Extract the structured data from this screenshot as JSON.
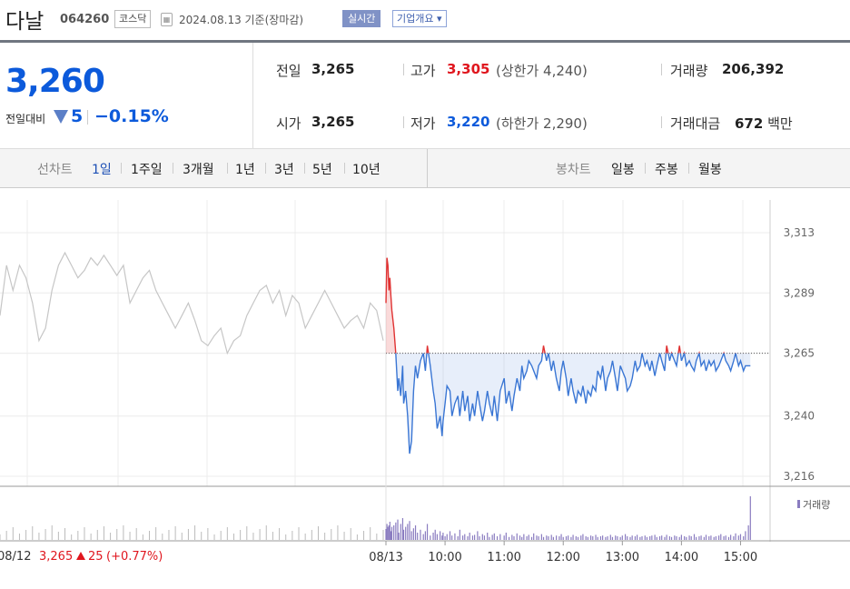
{
  "header": {
    "name": "다날",
    "code": "064260",
    "market": "코스닥",
    "date": "2024.08.13 기준(장마감)",
    "realtime": "실시간",
    "overview": "기업개요 ▾"
  },
  "price": {
    "current": "3,260",
    "change_label": "전일대비",
    "change": "5",
    "change_pct": "−0.15%",
    "direction": "down",
    "color_down": "#0c5adb",
    "color_up": "#e0161e"
  },
  "info": {
    "prev_label": "전일",
    "prev_value": "3,265",
    "open_label": "시가",
    "open_value": "3,265",
    "high_label": "고가",
    "high_value": "3,305",
    "upper_limit": "(상한가 4,240)",
    "low_label": "저가",
    "low_value": "3,220",
    "lower_limit": "(하한가 2,290)",
    "volume_label": "거래량",
    "volume_value": "206,392",
    "amount_label": "거래대금",
    "amount_value": "672",
    "amount_unit": "백만"
  },
  "toolbar": {
    "line_label": "선차트",
    "periods": [
      "1일",
      "1주일",
      "3개월",
      "1년",
      "3년",
      "5년",
      "10년"
    ],
    "active_period": "1일",
    "candle_label": "봉차트",
    "candles": [
      "일봉",
      "주봉",
      "월봉"
    ]
  },
  "chart_data": {
    "type": "line",
    "title": "",
    "y_ticks": [
      3313,
      3289,
      3265,
      3240,
      3216
    ],
    "ylim": [
      3214,
      3318
    ],
    "baseline": 3265,
    "x_tick_labels": [
      "08/13",
      "10:00",
      "11:00",
      "12:00",
      "13:00",
      "14:00",
      "15:00"
    ],
    "x_tick_times": [
      540,
      600,
      660,
      720,
      780,
      840,
      900
    ],
    "xlim_session": [
      540,
      930
    ],
    "prev_day": {
      "label": "08/12",
      "close": "3,265",
      "change": "25",
      "change_pct": "(+0.77%)",
      "values": [
        3280,
        3300,
        3290,
        3300,
        3295,
        3285,
        3270,
        3275,
        3290,
        3300,
        3305,
        3300,
        3295,
        3298,
        3303,
        3300,
        3304,
        3300,
        3296,
        3300,
        3285,
        3290,
        3295,
        3298,
        3290,
        3285,
        3280,
        3275,
        3280,
        3285,
        3278,
        3270,
        3268,
        3272,
        3275,
        3265,
        3270,
        3272,
        3280,
        3285,
        3290,
        3292,
        3285,
        3290,
        3280,
        3288,
        3285,
        3275,
        3280,
        3285,
        3290,
        3285,
        3280,
        3275,
        3278,
        3280,
        3275,
        3285,
        3282,
        3270
      ]
    },
    "series": [
      {
        "times": [
          540,
          541,
          542,
          543,
          544,
          545,
          546,
          548,
          550,
          552,
          553,
          555,
          557,
          558,
          560,
          562,
          564,
          566,
          568,
          570,
          572,
          575,
          578,
          580,
          582,
          585,
          588,
          590,
          592,
          595,
          597,
          598,
          600,
          602,
          605,
          607,
          610,
          613,
          615,
          618,
          620,
          623,
          625,
          628,
          630,
          633,
          635,
          638,
          640,
          643,
          645,
          648,
          650,
          653,
          656,
          660,
          662,
          665,
          668,
          670,
          673,
          676,
          678,
          680,
          683,
          685,
          688,
          690,
          693,
          695,
          698,
          700,
          703,
          705,
          708,
          710,
          713,
          716,
          718,
          720,
          723,
          725,
          728,
          730,
          733,
          735,
          738,
          740,
          743,
          745,
          748,
          750,
          753,
          755,
          758,
          760,
          763,
          765,
          768,
          770,
          773,
          775,
          778,
          780,
          783,
          785,
          788,
          790,
          793,
          795,
          798,
          800,
          803,
          805,
          808,
          810,
          813,
          815,
          818,
          820,
          823,
          825,
          828,
          830,
          833,
          835,
          838,
          840,
          843,
          845,
          848,
          850,
          853,
          855,
          858,
          860,
          863,
          865,
          868,
          870,
          873,
          875,
          878,
          880,
          883,
          885,
          888,
          890,
          893,
          895,
          898,
          900,
          903,
          905,
          908,
          910
        ],
        "values": [
          3285,
          3303,
          3300,
          3290,
          3295,
          3288,
          3282,
          3275,
          3265,
          3250,
          3255,
          3248,
          3260,
          3245,
          3250,
          3240,
          3225,
          3230,
          3250,
          3260,
          3255,
          3262,
          3265,
          3258,
          3268,
          3260,
          3250,
          3245,
          3235,
          3240,
          3232,
          3238,
          3245,
          3252,
          3250,
          3240,
          3245,
          3248,
          3240,
          3250,
          3242,
          3248,
          3238,
          3245,
          3240,
          3250,
          3245,
          3238,
          3242,
          3250,
          3245,
          3240,
          3248,
          3238,
          3250,
          3255,
          3245,
          3250,
          3242,
          3248,
          3255,
          3250,
          3260,
          3255,
          3258,
          3262,
          3260,
          3258,
          3255,
          3260,
          3262,
          3268,
          3262,
          3265,
          3258,
          3262,
          3255,
          3250,
          3258,
          3262,
          3255,
          3248,
          3255,
          3250,
          3245,
          3250,
          3248,
          3252,
          3245,
          3250,
          3248,
          3252,
          3250,
          3258,
          3255,
          3260,
          3250,
          3255,
          3258,
          3262,
          3255,
          3250,
          3260,
          3258,
          3255,
          3250,
          3252,
          3255,
          3262,
          3258,
          3260,
          3265,
          3260,
          3262,
          3258,
          3262,
          3256,
          3260,
          3265,
          3262,
          3258,
          3268,
          3262,
          3265,
          3262,
          3260,
          3268,
          3262,
          3265,
          3260,
          3262,
          3260,
          3258,
          3262,
          3265,
          3260,
          3262,
          3258,
          3262,
          3260,
          3262,
          3258,
          3260,
          3262,
          3265,
          3262,
          3260,
          3258,
          3262,
          3265,
          3260,
          3262,
          3258,
          3260,
          3260,
          3260
        ],
        "volume": [
          15,
          22,
          18,
          20,
          25,
          12,
          18,
          20,
          24,
          28,
          10,
          22,
          30,
          14,
          18,
          22,
          26,
          12,
          16,
          20,
          10,
          14,
          8,
          12,
          22,
          6,
          10,
          14,
          8,
          12,
          6,
          10,
          5,
          8,
          12,
          6,
          9,
          5,
          14,
          6,
          8,
          5,
          10,
          6,
          7,
          12,
          5,
          8,
          6,
          10,
          4,
          7,
          9,
          5,
          8,
          6,
          10,
          4,
          7,
          5,
          9,
          6,
          4,
          8,
          5,
          7,
          4,
          9,
          6,
          5,
          8,
          4,
          6,
          5,
          7,
          4,
          6,
          5,
          8,
          4,
          5,
          6,
          4,
          7,
          5,
          4,
          6,
          8,
          5,
          4,
          6,
          5,
          7,
          4,
          5,
          6,
          4,
          5,
          7,
          4,
          6,
          5,
          4,
          6,
          8,
          5,
          4,
          6,
          5,
          7,
          4,
          5,
          6,
          4,
          5,
          6,
          7,
          4,
          5,
          6,
          4,
          7,
          5,
          4,
          6,
          5,
          4,
          7,
          5,
          4,
          6,
          5,
          8,
          4,
          5,
          6,
          4,
          7,
          5,
          6,
          4,
          5,
          6,
          8,
          5,
          6,
          4,
          7,
          5,
          9,
          6,
          8,
          5,
          12,
          20,
          60
        ]
      }
    ],
    "volume_label": "거래량"
  },
  "colors": {
    "up": "#e03232",
    "down": "#3a76d4",
    "prev_line": "#c6c6c6",
    "fill_up": "rgba(240,150,150,0.35)",
    "fill_down": "rgba(120,160,225,0.18)",
    "volume_prev": "#bbbbbb",
    "volume_today": "#8a7cc0"
  }
}
